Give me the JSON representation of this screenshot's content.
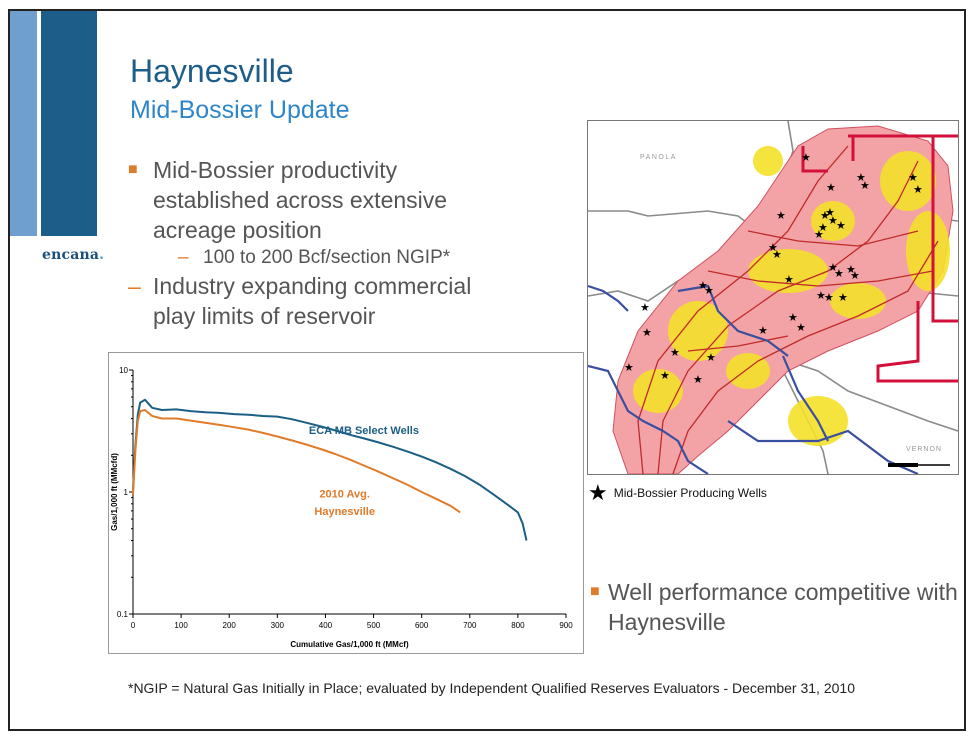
{
  "slide": {
    "title": "Haynesville",
    "subtitle": "Mid-Bossier Update",
    "logo": "encana",
    "bullets": [
      "Mid-Bossier productivity established across extensive acreage position",
      "100 to 200 Bcf/section NGIP*",
      "Industry expanding commercial play limits of reservoir"
    ],
    "right_bullet": "Well performance competitive with Haynesville",
    "footnote": "*NGIP = Natural Gas Initially in Place; evaluated by Independent Qualified Reserves Evaluators - December 31, 2010",
    "colors": {
      "accent_dark": "#1c5d8a",
      "accent_light": "#6f9fce",
      "bullet": "#e07b2a"
    }
  },
  "map": {
    "labels": {
      "panola": "PANOLA",
      "vernon": "VERNON"
    },
    "legend": "Mid-Bossier Producing Wells"
  },
  "chart_data": {
    "type": "line",
    "xlabel": "Cumulative Gas/1,000 ft (MMcf)",
    "ylabel": "Gas/1,000 ft (MMcfd)",
    "xlim": [
      0,
      900
    ],
    "ylim": [
      0.1,
      10
    ],
    "yscale": "log",
    "xticks": [
      0,
      100,
      200,
      300,
      400,
      500,
      600,
      700,
      800,
      900
    ],
    "yticks": [
      {
        "v": 0.1,
        "label": "0.1"
      },
      {
        "v": 1,
        "label": "1"
      },
      {
        "v": 10,
        "label": "10"
      }
    ],
    "series": [
      {
        "name": "ECA MB Select Wells",
        "color": "#1b5f86",
        "x": [
          0,
          5,
          10,
          15,
          25,
          40,
          60,
          90,
          120,
          150,
          180,
          210,
          240,
          270,
          300,
          330,
          360,
          390,
          420,
          450,
          480,
          510,
          540,
          570,
          600,
          630,
          660,
          690,
          720,
          750,
          780,
          800,
          810,
          818
        ],
        "y": [
          1.05,
          2.4,
          4.3,
          5.4,
          5.7,
          4.9,
          4.7,
          4.75,
          4.6,
          4.5,
          4.45,
          4.35,
          4.3,
          4.2,
          4.15,
          3.95,
          3.7,
          3.45,
          3.2,
          2.95,
          2.75,
          2.55,
          2.35,
          2.15,
          1.95,
          1.75,
          1.55,
          1.35,
          1.15,
          0.95,
          0.78,
          0.68,
          0.55,
          0.4
        ]
      },
      {
        "name": "2010 Avg. Haynesville",
        "color": "#e07b2a",
        "x": [
          0,
          5,
          10,
          15,
          25,
          40,
          60,
          90,
          120,
          150,
          180,
          210,
          240,
          270,
          300,
          330,
          360,
          390,
          420,
          450,
          480,
          510,
          540,
          570,
          600,
          630,
          660,
          680
        ],
        "y": [
          0.95,
          2.2,
          3.8,
          4.6,
          4.7,
          4.2,
          4.0,
          4.0,
          3.85,
          3.7,
          3.55,
          3.4,
          3.25,
          3.05,
          2.85,
          2.65,
          2.45,
          2.25,
          2.05,
          1.85,
          1.65,
          1.47,
          1.3,
          1.15,
          1.0,
          0.88,
          0.77,
          0.68
        ]
      }
    ],
    "annotations": [
      {
        "text": "ECA MB Select  Wells",
        "x": 480,
        "y": 3.0,
        "color": "#1b5f86"
      },
      {
        "text": "2010 Avg.",
        "x": 440,
        "y": 0.9,
        "color": "#e07b2a"
      },
      {
        "text": "Haynesville",
        "x": 440,
        "y": 0.65,
        "color": "#e07b2a"
      }
    ]
  }
}
